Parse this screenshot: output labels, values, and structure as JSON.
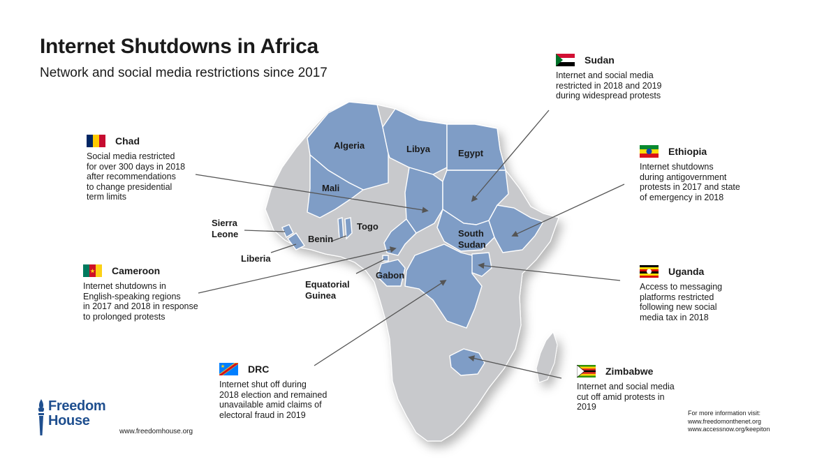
{
  "title": "Internet Shutdowns in Africa",
  "subtitle": "Network and social media restrictions since 2017",
  "colors": {
    "highlight": "#7f9dc6",
    "land": "#c8c9cc",
    "arrow": "#555555",
    "brand": "#1f4f8f"
  },
  "callouts": [
    {
      "id": "sudan",
      "name": "Sudan",
      "desc": [
        "Internet and social media",
        "restricted in 2018 and 2019",
        "during widespread protests"
      ]
    },
    {
      "id": "chad",
      "name": "Chad",
      "desc": [
        "Social media restricted",
        "for over 300 days in 2018",
        "after recommendations",
        "to change presidential",
        "term limits"
      ]
    },
    {
      "id": "ethiopia",
      "name": "Ethiopia",
      "desc": [
        "Internet shutdowns",
        "during antigovernment",
        "protests in 2017 and state",
        "of emergency in 2018"
      ]
    },
    {
      "id": "cameroon",
      "name": "Cameroon",
      "desc": [
        "Internet shutdowns in",
        "English-speaking regions",
        "in 2017 and 2018 in response",
        "to prolonged protests"
      ]
    },
    {
      "id": "uganda",
      "name": "Uganda",
      "desc": [
        "Access to messaging",
        "platforms restricted",
        "following new social",
        "media tax in 2018"
      ]
    },
    {
      "id": "drc",
      "name": "DRC",
      "desc": [
        "Internet shut off during",
        "2018 election and remained",
        "unavailable amid claims of",
        "electoral fraud in 2019"
      ]
    },
    {
      "id": "zimbabwe",
      "name": "Zimbabwe",
      "desc": [
        "Internet and social media",
        "cut off amid protests in",
        "2019"
      ]
    }
  ],
  "country_labels": {
    "algeria": "Algeria",
    "libya": "Libya",
    "egypt": "Egypt",
    "mali": "Mali",
    "togo": "Togo",
    "sierra_leone": [
      "Sierra",
      "Leone"
    ],
    "benin": "Benin",
    "liberia": "Liberia",
    "south_sudan": [
      "South",
      "Sudan"
    ],
    "gabon": "Gabon",
    "equatorial_guinea": [
      "Equatorial",
      "Guinea"
    ]
  },
  "brand": {
    "logo_words": [
      "Freedom",
      "House"
    ],
    "website": "www.freedomhouse.org"
  },
  "more_info": [
    "For more information visit:",
    "www.freedomonthenet.org",
    "www.accessnow.org/keepiton"
  ]
}
